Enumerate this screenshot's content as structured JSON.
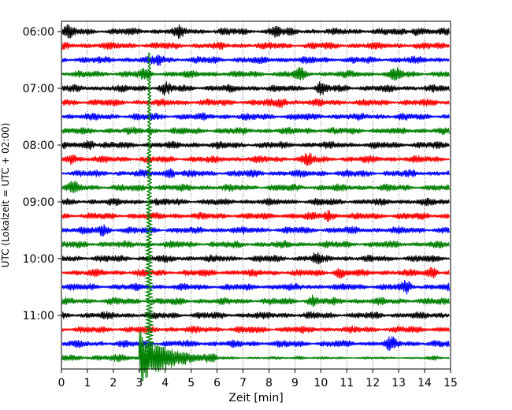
{
  "chart_data": {
    "type": "line",
    "title": "",
    "xlabel": "Zeit  [min]",
    "ylabel": "UTC (Lokalzeit = UTC + 02:00)",
    "xlim": [
      0,
      15
    ],
    "x_ticks": [
      "0",
      "1",
      "2",
      "3",
      "4",
      "5",
      "6",
      "7",
      "8",
      "9",
      "10",
      "11",
      "12",
      "13",
      "14",
      "15"
    ],
    "y_ticks": [
      {
        "row": 0,
        "label": "06:00"
      },
      {
        "row": 4,
        "label": "07:00"
      },
      {
        "row": 8,
        "label": "08:00"
      },
      {
        "row": 12,
        "label": "09:00"
      },
      {
        "row": 16,
        "label": "10:00"
      },
      {
        "row": 20,
        "label": "11:00"
      }
    ],
    "trace_minutes": 15,
    "trace_count": 24,
    "first_trace_time": "06:00",
    "color_cycle": [
      "#000000",
      "#ff0000",
      "#0000ff",
      "#008000"
    ],
    "grid": "vertical dotted",
    "event": {
      "description": "large seismic event",
      "trace_time": "11:45",
      "onset_min": 3.0,
      "peak_min": 3.45,
      "peak_reaches_trace_time": "06:30",
      "coda_end_min": 6.0
    },
    "bursts": [
      {
        "trace_time": "06:00",
        "min": 0.3
      },
      {
        "trace_time": "06:00",
        "min": 4.5
      },
      {
        "trace_time": "06:00",
        "min": 8.3
      },
      {
        "trace_time": "06:00",
        "min": 13.7
      },
      {
        "trace_time": "06:30",
        "min": 3.8
      },
      {
        "trace_time": "06:45",
        "min": 3.2
      },
      {
        "trace_time": "06:45",
        "min": 9.2
      },
      {
        "trace_time": "06:45",
        "min": 12.9
      },
      {
        "trace_time": "07:00",
        "min": 10.0
      },
      {
        "trace_time": "07:00",
        "min": 4.0
      },
      {
        "trace_time": "07:15",
        "min": 8.5
      },
      {
        "trace_time": "08:00",
        "min": 1.1
      },
      {
        "trace_time": "08:15",
        "min": 0.4
      },
      {
        "trace_time": "08:15",
        "min": 9.5
      },
      {
        "trace_time": "08:30",
        "min": 4.2
      },
      {
        "trace_time": "08:45",
        "min": 0.5
      },
      {
        "trace_time": "09:15",
        "min": 10.3
      },
      {
        "trace_time": "09:30",
        "min": 1.6
      },
      {
        "trace_time": "10:00",
        "min": 9.8
      },
      {
        "trace_time": "10:15",
        "min": 10.7
      },
      {
        "trace_time": "10:15",
        "min": 14.3
      },
      {
        "trace_time": "10:30",
        "min": 13.3
      },
      {
        "trace_time": "10:45",
        "min": 9.7
      },
      {
        "trace_time": "11:30",
        "min": 12.7
      },
      {
        "trace_time": "11:45",
        "min": 9.2
      },
      {
        "trace_time": "11:45",
        "min": 14.4
      }
    ]
  }
}
